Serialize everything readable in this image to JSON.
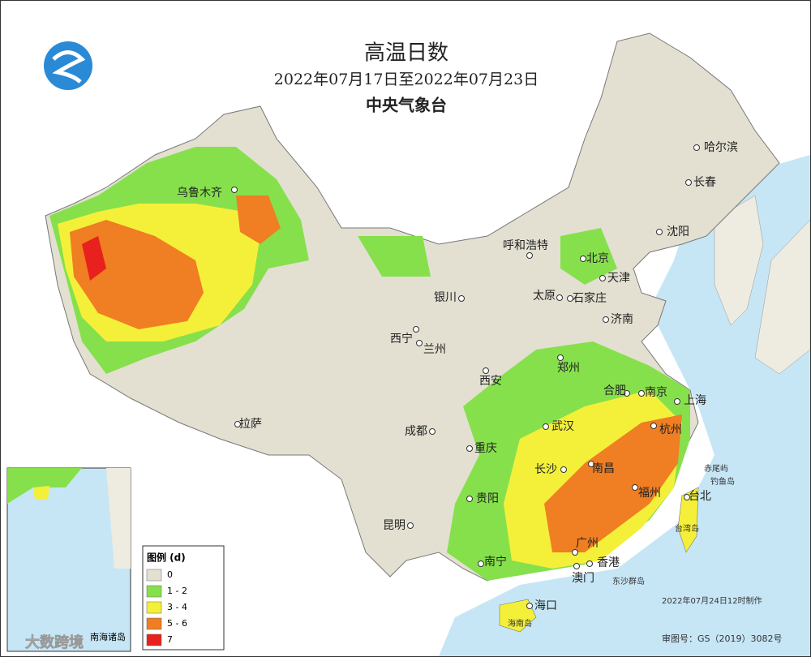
{
  "header": {
    "title": "高温日数",
    "date_range": "2022年07月17日至2022年07月23日",
    "agency": "中央气象台"
  },
  "legend": {
    "title": "图例 (d)",
    "items": [
      {
        "label": "0",
        "color": "#e3e0d2"
      },
      {
        "label": "1 - 2",
        "color": "#86e04c"
      },
      {
        "label": "3 - 4",
        "color": "#f4f03a"
      },
      {
        "label": "5 - 6",
        "color": "#f07e22"
      },
      {
        "label": "7",
        "color": "#e8201e"
      }
    ]
  },
  "cities": [
    "乌鲁木齐",
    "哈尔滨",
    "长春",
    "沈阳",
    "呼和浩特",
    "北京",
    "天津",
    "银川",
    "太原",
    "石家庄",
    "济南",
    "西宁",
    "兰州",
    "郑州",
    "西安",
    "合肥",
    "南京",
    "上海",
    "拉萨",
    "成都",
    "武汉",
    "杭州",
    "重庆",
    "长沙",
    "南昌",
    "福州",
    "台北",
    "贵阳",
    "昆明",
    "南宁",
    "广州",
    "香港",
    "澳门",
    "海口"
  ],
  "islands": [
    "赤尾屿",
    "钓鱼岛",
    "台湾岛",
    "东沙群岛",
    "海南岛"
  ],
  "inset_label": "南海诸岛",
  "footer": {
    "made": "2022年07月24日12时制作",
    "review": "审图号：GS（2019）3082号"
  },
  "watermark": "大数跨境"
}
